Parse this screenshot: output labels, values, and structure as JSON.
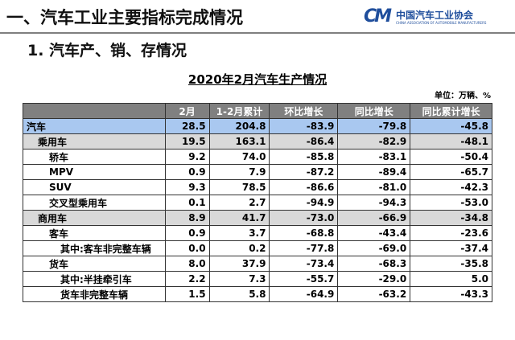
{
  "header": {
    "title": "一、汽车工业主要指标完成情况",
    "logo_text": "中国汽车工业协会",
    "logo_subtext": "CHINA ASSOCIATION OF AUTOMOBILE MANUFACTURERS"
  },
  "section": "1. 汽车产、销、存情况",
  "table": {
    "title": "2020年2月汽车生产情况",
    "unit": "单位：万辆、%",
    "columns": [
      "",
      "2月",
      "1-2月累计",
      "环比增长",
      "同比增长",
      "同比累计增长"
    ],
    "rows": [
      [
        "汽车",
        "28.5",
        "204.8",
        "-83.9",
        "-79.8",
        "-45.8"
      ],
      [
        "乘用车",
        "19.5",
        "163.1",
        "-86.4",
        "-82.9",
        "-48.1"
      ],
      [
        "轿车",
        "9.2",
        "74.0",
        "-85.8",
        "-83.1",
        "-50.4"
      ],
      [
        "MPV",
        "0.9",
        "7.9",
        "-87.2",
        "-89.4",
        "-65.7"
      ],
      [
        "SUV",
        "9.3",
        "78.5",
        "-86.6",
        "-81.0",
        "-42.3"
      ],
      [
        "交叉型乘用车",
        "0.1",
        "2.7",
        "-94.9",
        "-94.3",
        "-53.0"
      ],
      [
        "商用车",
        "8.9",
        "41.7",
        "-73.0",
        "-66.9",
        "-34.8"
      ],
      [
        "客车",
        "0.9",
        "3.7",
        "-68.8",
        "-43.4",
        "-23.6"
      ],
      [
        "其中:客车非完整车辆",
        "0.0",
        "0.2",
        "-77.8",
        "-69.0",
        "-37.4"
      ],
      [
        "货车",
        "8.0",
        "37.9",
        "-73.4",
        "-68.3",
        "-35.8"
      ],
      [
        "其中:半挂牵引车",
        "2.2",
        "7.3",
        "-55.7",
        "-29.0",
        "5.0"
      ],
      [
        "货车非完整车辆",
        "1.5",
        "5.8",
        "-64.9",
        "-63.2",
        "-43.3"
      ]
    ]
  }
}
